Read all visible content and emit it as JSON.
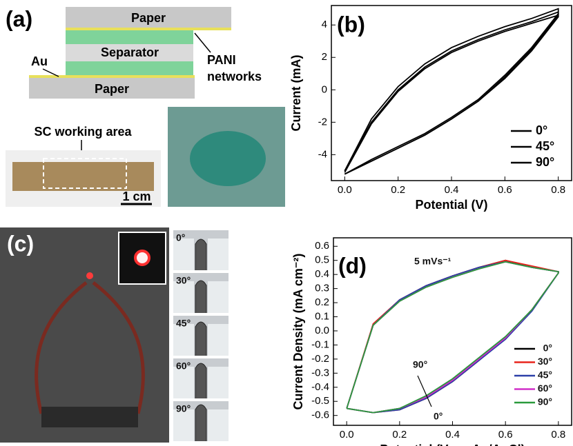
{
  "panel_a": {
    "label": "(a)",
    "paper_top": "Paper",
    "separator": "Separator",
    "paper_bottom": "Paper",
    "au": "Au",
    "pani_1": "PANI",
    "pani_2": "networks",
    "working_area": "SC working area",
    "scale": "1 cm"
  },
  "panel_c": {
    "label": "(c)",
    "angles": [
      "0°",
      "30°",
      "45°",
      "60°",
      "90°"
    ]
  },
  "chart_data": [
    {
      "type": "line",
      "panel_label": "(b)",
      "x_label": "Potential (V)",
      "y_label": "Current (mA)",
      "x": [
        0,
        0.1,
        0.2,
        0.3,
        0.4,
        0.5,
        0.6,
        0.7,
        0.8,
        0.8,
        0.7,
        0.6,
        0.5,
        0.4,
        0.3,
        0.2,
        0.1,
        0
      ],
      "series": [
        {
          "name": "0°",
          "color": "#000000",
          "values": [
            -5.2,
            -4.4,
            -3.6,
            -2.8,
            -1.8,
            -0.7,
            0.8,
            2.5,
            4.6,
            4.8,
            4.2,
            3.7,
            3.1,
            2.4,
            1.4,
            0.0,
            -2.0,
            -5.0
          ]
        },
        {
          "name": "45°",
          "color": "#000000",
          "values": [
            -5.2,
            -4.3,
            -3.5,
            -2.7,
            -1.7,
            -0.6,
            0.9,
            2.6,
            4.7,
            5.0,
            4.4,
            3.9,
            3.3,
            2.6,
            1.6,
            0.2,
            -1.8,
            -5.0
          ]
        },
        {
          "name": "90°",
          "color": "#000000",
          "values": [
            -5.2,
            -4.4,
            -3.6,
            -2.8,
            -1.8,
            -0.7,
            0.7,
            2.4,
            4.5,
            4.6,
            4.1,
            3.6,
            3.0,
            2.3,
            1.3,
            -0.1,
            -2.1,
            -5.1
          ]
        }
      ],
      "xlim": [
        -0.05,
        0.85
      ],
      "xticks": [
        {
          "value": 0,
          "label": "0.0"
        },
        0.2,
        0.4,
        0.6,
        0.8
      ],
      "ylim": [
        -5.6,
        5.2
      ],
      "yticks": [
        -4,
        -2,
        0,
        2,
        4
      ]
    },
    {
      "type": "line",
      "panel_label": "(d)",
      "x_label": "Potential (V vs. Ag/AgCl)",
      "y_label": "Current Density (mA cm⁻²)",
      "annotations": [
        "5 mVs⁻¹",
        "90°",
        "0°"
      ],
      "x": [
        0,
        0.1,
        0.2,
        0.3,
        0.4,
        0.5,
        0.6,
        0.7,
        0.8,
        0.8,
        0.7,
        0.6,
        0.5,
        0.4,
        0.3,
        0.2,
        0.1,
        0
      ],
      "series": [
        {
          "name": "0°",
          "color": "#000000",
          "values": [
            -0.55,
            -0.58,
            -0.55,
            -0.47,
            -0.35,
            -0.2,
            -0.05,
            0.15,
            0.41,
            0.42,
            0.45,
            0.5,
            0.45,
            0.39,
            0.32,
            0.22,
            0.04,
            -0.55
          ]
        },
        {
          "name": "30°",
          "color": "#e8241c",
          "values": [
            -0.55,
            -0.58,
            -0.56,
            -0.48,
            -0.36,
            -0.21,
            -0.05,
            0.15,
            0.41,
            0.42,
            0.46,
            0.5,
            0.45,
            0.39,
            0.32,
            0.22,
            0.05,
            -0.55
          ]
        },
        {
          "name": "45°",
          "color": "#2b3fa8",
          "values": [
            -0.55,
            -0.58,
            -0.56,
            -0.48,
            -0.36,
            -0.21,
            -0.06,
            0.14,
            0.41,
            0.42,
            0.45,
            0.49,
            0.45,
            0.39,
            0.32,
            0.22,
            0.04,
            -0.55
          ]
        },
        {
          "name": "60°",
          "color": "#d02fc8",
          "values": [
            -0.55,
            -0.58,
            -0.55,
            -0.47,
            -0.35,
            -0.2,
            -0.05,
            0.15,
            0.41,
            0.42,
            0.45,
            0.49,
            0.44,
            0.38,
            0.31,
            0.21,
            0.04,
            -0.55
          ]
        },
        {
          "name": "90°",
          "color": "#2a9a3c",
          "values": [
            -0.55,
            -0.58,
            -0.55,
            -0.46,
            -0.34,
            -0.19,
            -0.04,
            0.15,
            0.41,
            0.42,
            0.45,
            0.49,
            0.44,
            0.38,
            0.31,
            0.21,
            0.04,
            -0.55
          ]
        }
      ],
      "xlim": [
        -0.05,
        0.85
      ],
      "xticks": [
        {
          "value": 0,
          "label": "0.0"
        },
        0.2,
        0.4,
        0.6,
        0.8
      ],
      "ylim": [
        -0.67,
        0.66
      ],
      "yticks": [
        -0.6,
        -0.5,
        -0.4,
        -0.3,
        -0.2,
        -0.1,
        {
          "value": 0,
          "label": "0.0"
        },
        0.1,
        0.2,
        0.3,
        0.4,
        0.5,
        0.6
      ]
    }
  ]
}
